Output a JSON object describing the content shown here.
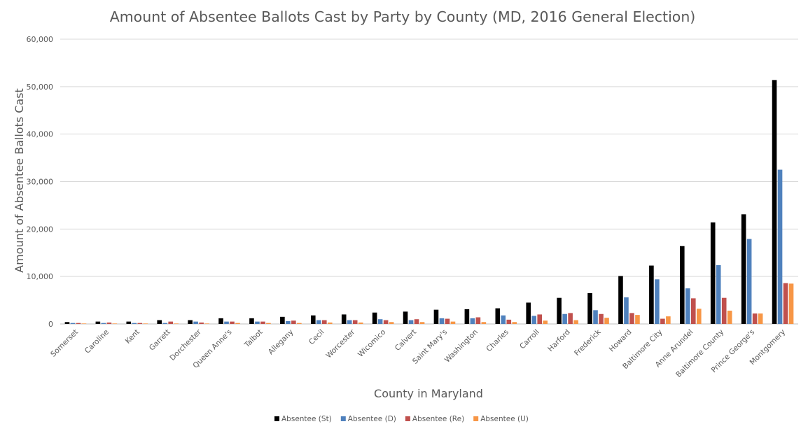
{
  "chart_data": {
    "type": "bar",
    "title": "Amount of Absentee Ballots Cast by Party by County (MD, 2016 General Election)",
    "xlabel": "County in Maryland",
    "ylabel": "Amount of Absentee Ballots Cast",
    "ylim": [
      0,
      60000
    ],
    "yticks": [
      0,
      10000,
      20000,
      30000,
      40000,
      50000,
      60000
    ],
    "ytick_labels": [
      "0",
      "10,000",
      "20,000",
      "30,000",
      "40,000",
      "50,000",
      "60,000"
    ],
    "grid": true,
    "legend_position": "bottom",
    "categories": [
      "Somerset",
      "Caroline",
      "Kent",
      "Garrett",
      "Dorchester",
      "Queen Anne's",
      "Talbot",
      "Allegany",
      "Cecil",
      "Worcester",
      "Wicomico",
      "Calvert",
      "Saint Mary's",
      "Washington",
      "Charles",
      "Carroll",
      "Harford",
      "Frederick",
      "Howard",
      "Baltimore City",
      "Anne Arundel",
      "Baltimore County",
      "Prince George's",
      "Montgomery"
    ],
    "series": [
      {
        "name": "Absentee (St)",
        "color": "#000000",
        "values": [
          400,
          500,
          500,
          800,
          800,
          1200,
          1200,
          1500,
          1800,
          2000,
          2400,
          2600,
          3000,
          3100,
          3300,
          4500,
          5500,
          6500,
          10100,
          12300,
          16400,
          21400,
          23100,
          51400
        ]
      },
      {
        "name": "Absentee (D)",
        "color": "#4f81bd",
        "values": [
          200,
          200,
          200,
          200,
          500,
          500,
          500,
          600,
          800,
          800,
          1000,
          800,
          1200,
          1200,
          1800,
          1700,
          2100,
          2900,
          5600,
          9400,
          7500,
          12400,
          17900,
          32500
        ]
      },
      {
        "name": "Absentee (Re)",
        "color": "#c0504d",
        "values": [
          200,
          300,
          200,
          500,
          300,
          500,
          500,
          700,
          800,
          800,
          800,
          1000,
          1100,
          1400,
          900,
          2000,
          2300,
          2100,
          2300,
          1100,
          5400,
          5500,
          2200,
          8600
        ]
      },
      {
        "name": "Absentee (U)",
        "color": "#f79646",
        "values": [
          100,
          100,
          100,
          100,
          100,
          200,
          200,
          200,
          300,
          300,
          400,
          400,
          500,
          400,
          400,
          700,
          800,
          1300,
          1900,
          1600,
          3200,
          2800,
          2200,
          8500
        ]
      }
    ]
  }
}
